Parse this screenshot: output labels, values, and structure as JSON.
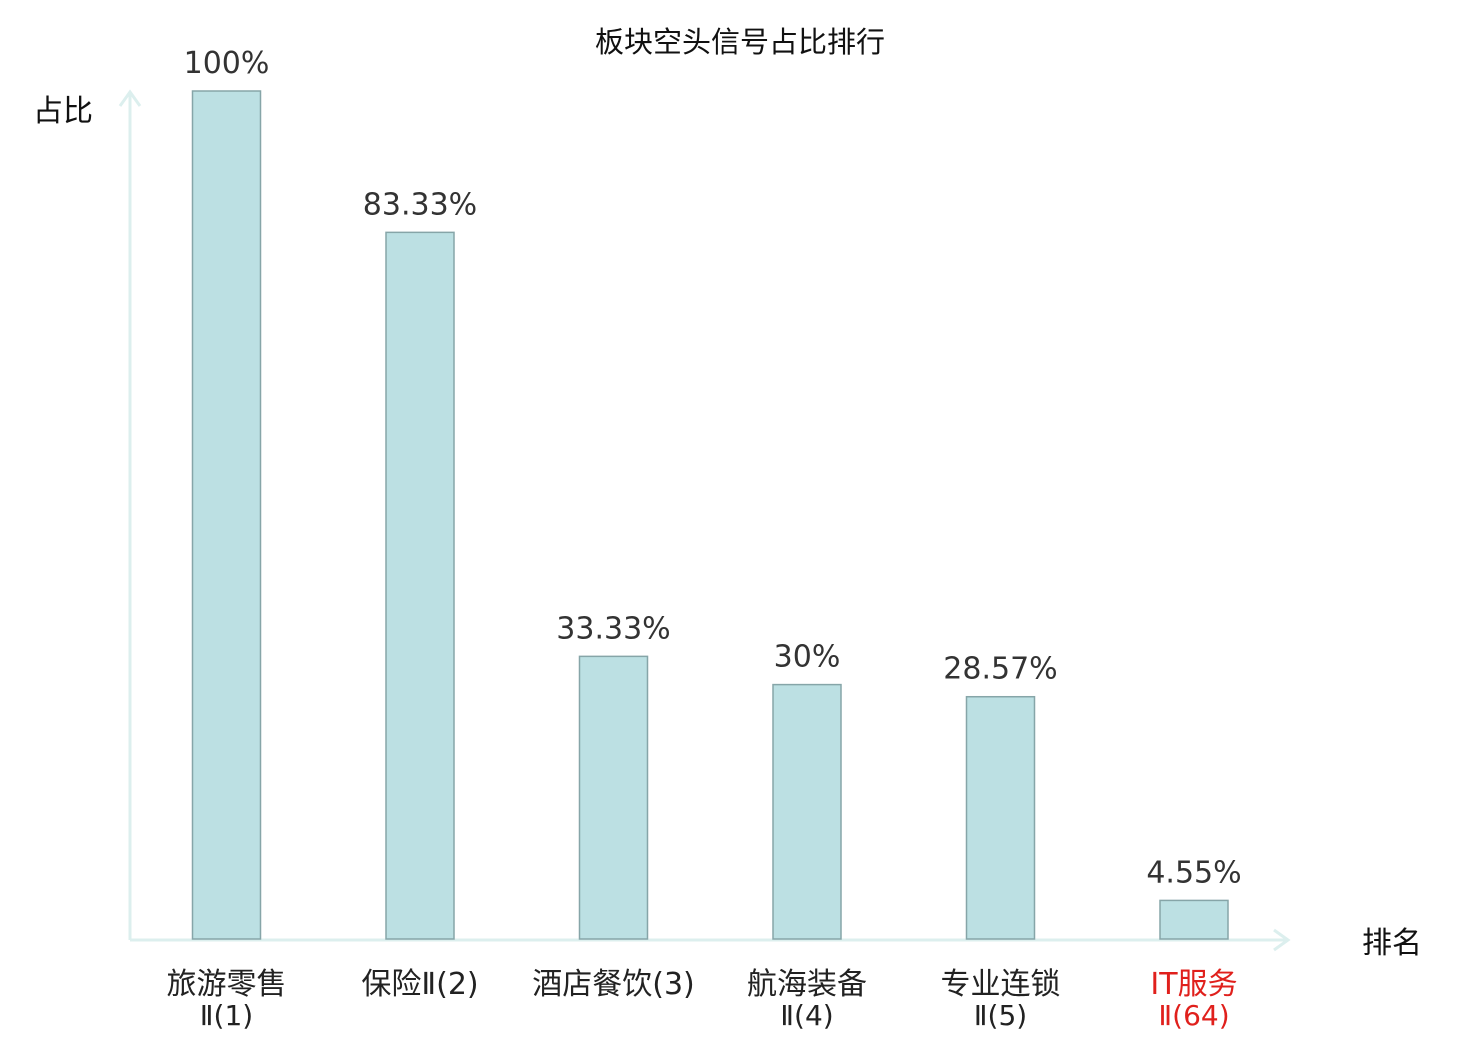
{
  "chart_data": {
    "type": "bar",
    "title": "板块空头信号占比排行",
    "ylabel": "占比",
    "xlabel": "排名",
    "ylim": [
      0,
      100
    ],
    "grid": false,
    "categories": [
      {
        "line1": "旅游零售",
        "line2": "Ⅱ(1)",
        "highlight": false
      },
      {
        "line1": "保险Ⅱ(2)",
        "line2": "",
        "highlight": false
      },
      {
        "line1": "酒店餐饮(3)",
        "line2": "",
        "highlight": false
      },
      {
        "line1": "航海装备",
        "line2": "Ⅱ(4)",
        "highlight": false
      },
      {
        "line1": "专业连锁",
        "line2": "Ⅱ(5)",
        "highlight": false
      },
      {
        "line1": "IT服务",
        "line2": "Ⅱ(64)",
        "highlight": true
      }
    ],
    "values": [
      100,
      83.33,
      33.33,
      30,
      28.57,
      4.55
    ],
    "value_labels": [
      "100%",
      "83.33%",
      "33.33%",
      "30%",
      "28.57%",
      "4.55%"
    ],
    "colors": {
      "bar_fill": "#bce0e3",
      "bar_stroke": "#86a5a8",
      "axis": "#dcefee",
      "category_text": "#222222",
      "highlight_text": "#e0201c"
    }
  }
}
